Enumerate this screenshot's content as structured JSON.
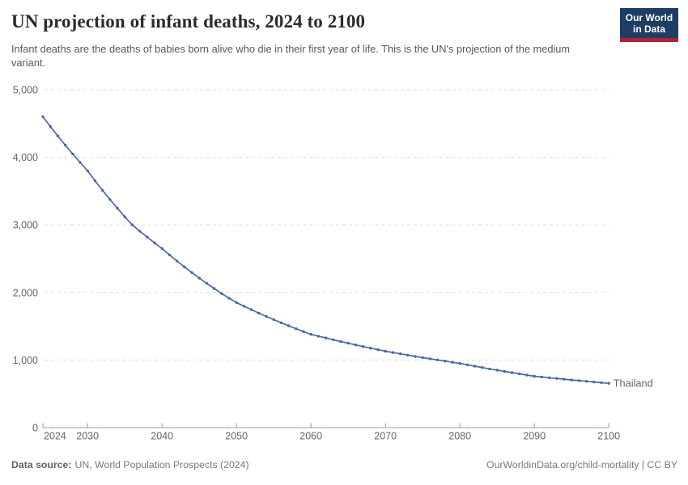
{
  "header": {
    "title": "UN projection of infant deaths, 2024 to 2100",
    "subtitle": "Infant deaths are the deaths of babies born alive who die in their first year of life. This is the UN's projection of the medium variant.",
    "logo": {
      "line1": "Our World",
      "line2": "in Data"
    }
  },
  "footer": {
    "datasource_label": "Data source:",
    "datasource_value": "UN, World Population Prospects (2024)",
    "credit": "OurWorldinData.org/child-mortality | CC BY"
  },
  "colors": {
    "series_blue": "#4a69a2",
    "logo_navy": "#1d3d63",
    "logo_red": "#aa2639",
    "gridline": "#dcdcdc",
    "axis": "#9e9e9e",
    "tick_text": "#666666"
  },
  "chart_data": {
    "type": "line",
    "title": "UN projection of infant deaths, 2024 to 2100",
    "xlabel": "",
    "ylabel": "",
    "xlim": [
      2024,
      2100
    ],
    "ylim": [
      0,
      5000
    ],
    "x_ticks": [
      2024,
      2030,
      2040,
      2050,
      2060,
      2070,
      2080,
      2090,
      2100
    ],
    "y_ticks": [
      0,
      1000,
      2000,
      3000,
      4000,
      5000
    ],
    "grid": "horizontal-dashed",
    "markers": true,
    "legend": "end-of-line-label",
    "x": [
      2024,
      2025,
      2026,
      2027,
      2028,
      2029,
      2030,
      2031,
      2032,
      2033,
      2034,
      2035,
      2036,
      2037,
      2038,
      2039,
      2040,
      2041,
      2042,
      2043,
      2044,
      2045,
      2046,
      2047,
      2048,
      2049,
      2050,
      2051,
      2052,
      2053,
      2054,
      2055,
      2056,
      2057,
      2058,
      2059,
      2060,
      2061,
      2062,
      2063,
      2064,
      2065,
      2066,
      2067,
      2068,
      2069,
      2070,
      2071,
      2072,
      2073,
      2074,
      2075,
      2076,
      2077,
      2078,
      2079,
      2080,
      2081,
      2082,
      2083,
      2084,
      2085,
      2086,
      2087,
      2088,
      2089,
      2090,
      2091,
      2092,
      2093,
      2094,
      2095,
      2096,
      2097,
      2098,
      2099,
      2100
    ],
    "series": [
      {
        "name": "Thailand",
        "color": "#4a69a2",
        "values": [
          4600,
          4456,
          4316,
          4181,
          4050,
          3923,
          3800,
          3653,
          3512,
          3376,
          3246,
          3120,
          3000,
          2908,
          2819,
          2733,
          2650,
          2556,
          2465,
          2378,
          2294,
          2212,
          2134,
          2058,
          1985,
          1915,
          1850,
          1797,
          1745,
          1694,
          1645,
          1598,
          1552,
          1507,
          1463,
          1421,
          1380,
          1353,
          1326,
          1300,
          1274,
          1249,
          1224,
          1200,
          1176,
          1153,
          1130,
          1111,
          1092,
          1073,
          1054,
          1036,
          1018,
          1001,
          984,
          967,
          950,
          929,
          909,
          889,
          869,
          850,
          831,
          813,
          795,
          777,
          760,
          749,
          738,
          727,
          716,
          705,
          695,
          685,
          675,
          665,
          655
        ]
      }
    ]
  }
}
